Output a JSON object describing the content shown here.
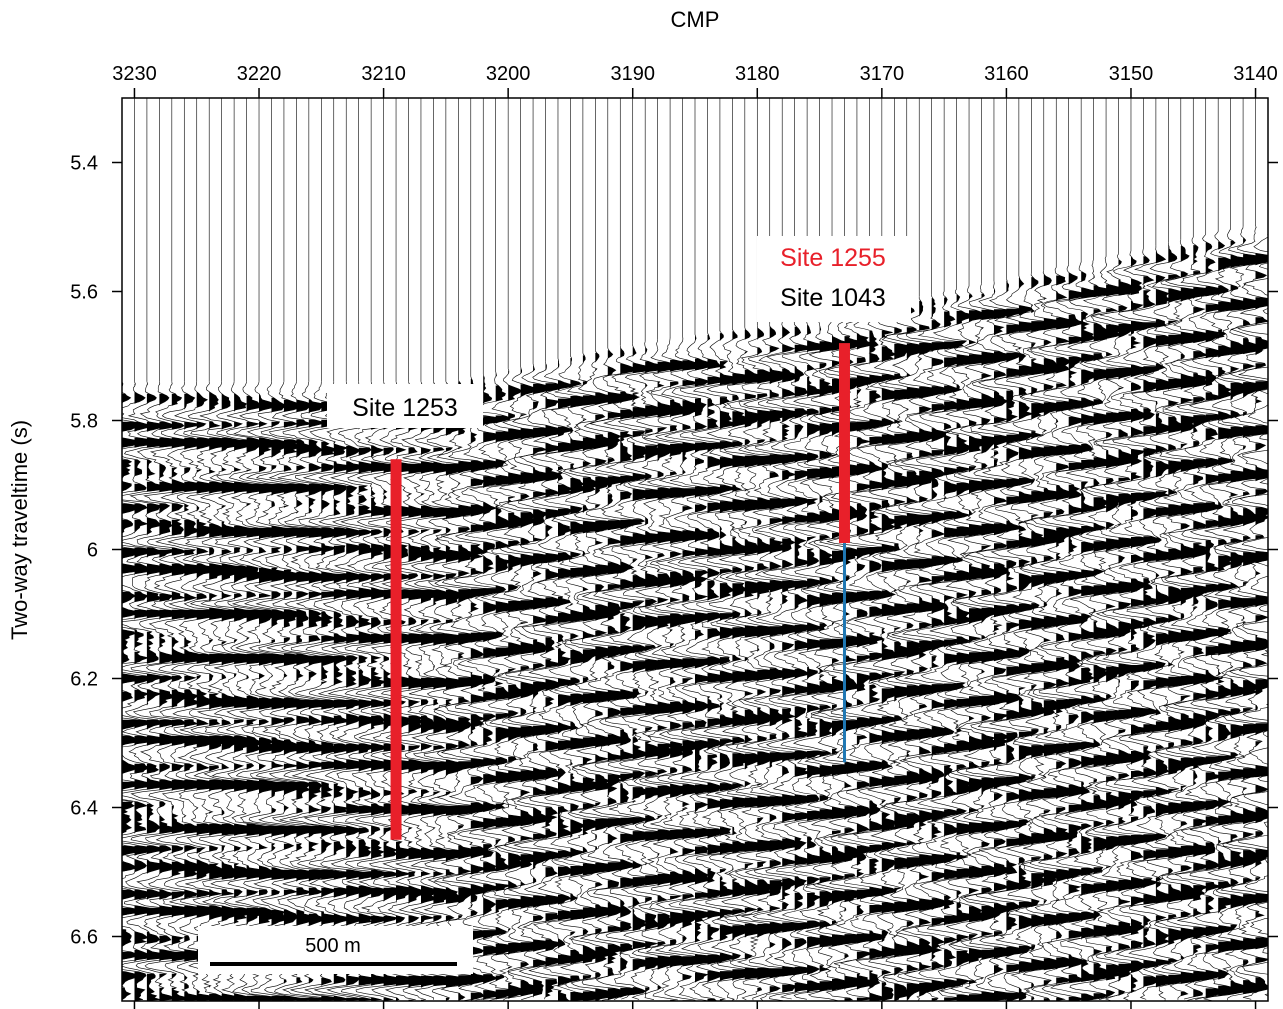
{
  "chart_data": {
    "type": "seismic-section",
    "xlabel": "CMP",
    "ylabel": "Two-way traveltime (s)",
    "xlim": [
      3231,
      3139
    ],
    "ylim": [
      5.3,
      6.7
    ],
    "x_reversed": true,
    "y_inverted": true,
    "x_ticks": [
      3230,
      3220,
      3210,
      3200,
      3190,
      3180,
      3170,
      3160,
      3150,
      3140
    ],
    "y_ticks": [
      5.4,
      5.6,
      5.8,
      6,
      6.2,
      6.4,
      6.6
    ],
    "y_tick_labels": [
      "5.4",
      "5.6",
      "5.8",
      "6",
      "6.2",
      "6.4",
      "6.6"
    ],
    "traces_per_cmp": 1,
    "seafloor": [
      {
        "cmp": 3231,
        "t": 5.74
      },
      {
        "cmp": 3205,
        "t": 5.74
      },
      {
        "cmp": 3190,
        "t": 5.68
      },
      {
        "cmp": 3175,
        "t": 5.64
      },
      {
        "cmp": 3160,
        "t": 5.58
      },
      {
        "cmp": 3139,
        "t": 5.49
      }
    ],
    "annotations": [
      {
        "label": "Site 1253",
        "color": "#000000",
        "cmp": 3209,
        "t_top": 5.86,
        "t_bottom": 6.45,
        "bar_color": "#e8202a"
      },
      {
        "label": "Site 1255",
        "color": "#e8202a",
        "cmp": 3173,
        "t_top": 5.68,
        "t_bottom": 5.99,
        "bar_color": "#e8202a"
      },
      {
        "label": "Site 1043",
        "color": "#000000",
        "cmp": 3173,
        "t_top": 5.99,
        "t_bottom": 6.33,
        "bar_color": "#1f78b4"
      }
    ],
    "scale_bar": {
      "label": "500 m"
    }
  }
}
